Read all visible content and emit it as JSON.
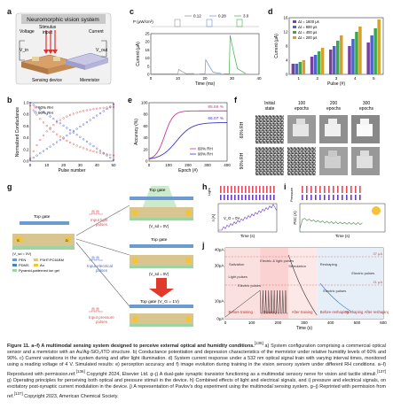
{
  "panel_letters": {
    "a": "a",
    "b": "b",
    "c": "c",
    "d": "d",
    "e": "e",
    "f": "f",
    "g": "g",
    "h": "h",
    "i": "i",
    "j": "j"
  },
  "panel_a": {
    "title": "Neuromorphic vision system",
    "voltage": "Voltage",
    "stimulus": "Stimulus",
    "stimulus2": "input",
    "current": "Current",
    "vin": "V_in",
    "vout": "V_out",
    "sensing": "Sensing device",
    "memristor": "Memristor"
  },
  "panel_b": {
    "legend": [
      "60% RH",
      "90% RH"
    ],
    "xlabel": "Pulse number",
    "ylabel": "Normalized Conductance",
    "xticks": [
      "0",
      "10",
      "20",
      "30",
      "40",
      "50"
    ],
    "yticks": [
      "0.0",
      "0.2",
      "0.4",
      "0.6",
      "0.8",
      "1.0"
    ]
  },
  "panel_c": {
    "legend": [
      "0.12",
      "0.28",
      "3.0"
    ],
    "unit": "P (μW/cm²)",
    "xlabel": "Time (ms)",
    "ylabel": "Current (μA)",
    "xticks": [
      "0",
      "10",
      "20",
      "30",
      "40"
    ],
    "yticks": [
      "0",
      "5",
      "10",
      "15",
      "20",
      "25"
    ]
  },
  "panel_d": {
    "legend": [
      "Δt = 1600 μs",
      "Δt = 800 μs",
      "Δt = 400 μs",
      "Δt = 200 μs"
    ],
    "xlabel": "Pulse (#)",
    "ylabel": "Current (μA)",
    "xticks": [
      "1",
      "2",
      "3",
      "4",
      "5"
    ],
    "yticks": [
      "0",
      "4",
      "8",
      "12",
      "16"
    ]
  },
  "panel_e": {
    "v1": "85.66 %",
    "v2": "66.07 %",
    "legend": [
      "60% RH",
      "90% RH"
    ],
    "xlabel": "Epoch (#)",
    "ylabel": "Accuracy (%)",
    "xticks": [
      "0",
      "100",
      "200",
      "300",
      "400"
    ],
    "yticks": [
      "0",
      "20",
      "40",
      "60",
      "80",
      "100"
    ]
  },
  "panel_f": {
    "cols": [
      "Initial",
      "100",
      "200",
      "300"
    ],
    "cols2": [
      "state",
      "epochs",
      "epochs",
      "epochs"
    ],
    "rows": [
      "60% RH",
      "90% RH"
    ]
  },
  "panel_g": {
    "top_gate": "Top gate",
    "input_light": "Input light",
    "input_light2": "pulses",
    "vsd": "(V_sd = 0V)",
    "input_elec": "Input electrical",
    "input_elec2": "pulses",
    "vsd2": "(V_sd = 0V)",
    "top_gate_v": "Top gate (V_G = 1V)",
    "input_pressure": "Input pressure",
    "input_pressure2": "pulses",
    "pdms": "PDMS",
    "pdms_ion": "P3HT:PC61BM",
    "au": "Au",
    "pdms2": "PEN",
    "pyramid": "Pyramid-patterned ion gel",
    "vsd_side": "(V_sd = 0V)",
    "s": "S",
    "d": "D"
  },
  "panel_h": {
    "light": "Light",
    "ylabel": "I (A)",
    "note": "V_G = 0V",
    "xlabel": "Time (s)"
  },
  "panel_i": {
    "ylabel": "Pressure",
    "ylabel2": "PSC (A)",
    "xlabel": "Time (s)"
  },
  "panel_j": {
    "y40": "40μA",
    "y30": "30μA",
    "y10": "10μA",
    "y0": "0μA",
    "labels": [
      "Before training",
      "Training",
      "After training",
      "Before reshaping",
      "Reshaping",
      "After reshaping"
    ],
    "notes": [
      "Light pulses",
      "Electric pulses",
      "Electric pulses",
      "Electric pulses"
    ],
    "xlabel": "Time (s)",
    "xticks": [
      "0",
      "100",
      "200",
      "300",
      "400",
      "500",
      "600"
    ],
    "anno": [
      "Salivation",
      "Reshaping",
      "Electric & light pulses",
      "Stimulation"
    ],
    "currents": [
      "37 μA",
      "21 μA"
    ]
  },
  "caption": {
    "head": "Figure 11.  a–f) A multimodal sensing system designed to perceive external optical and humidity conditions.",
    "ref1": "[136]",
    "body1": " a) System configuration comprising a commercial optical sensor and a memristor with an Au/Ag-SiO₂/ITO structure. b) Conductance potentiation and depression characteristics of the memristor under relative humidity levels of 60% and 90%. c) Current variations in the system during and after light illumination. d) System current response under a 532 nm optical signal train with varying interval times, monitored using a reading voltage of 4 V. Simulated results: e) perception accuracy and f) image evolution during training in the vision sensory system under different RH conditions. a–f) Reproduced with permission.ref.",
    "ref2": "[136]",
    "body2": " Copyright 2024, Elsevier Ltd. g–j) A dual-gate synaptic transistor functioning as a multimodal sensory nerve for vision and tactile stimuli.",
    "ref3": "[137]",
    "body3": " g) Operating principles for perceiving both optical and pressure stimuli in the device. h) Combined effects of light and electrical signals, and i) pressure and electrical signals, on excitatory post-synaptic current modulation in the device. j) A representation of Pavlov's dog experiment using the multimodal sensing system. g–j) Reprinted with permission from ref.",
    "ref4": "[137]",
    "body4": " Copyright 2023, American Chemical Society."
  }
}
